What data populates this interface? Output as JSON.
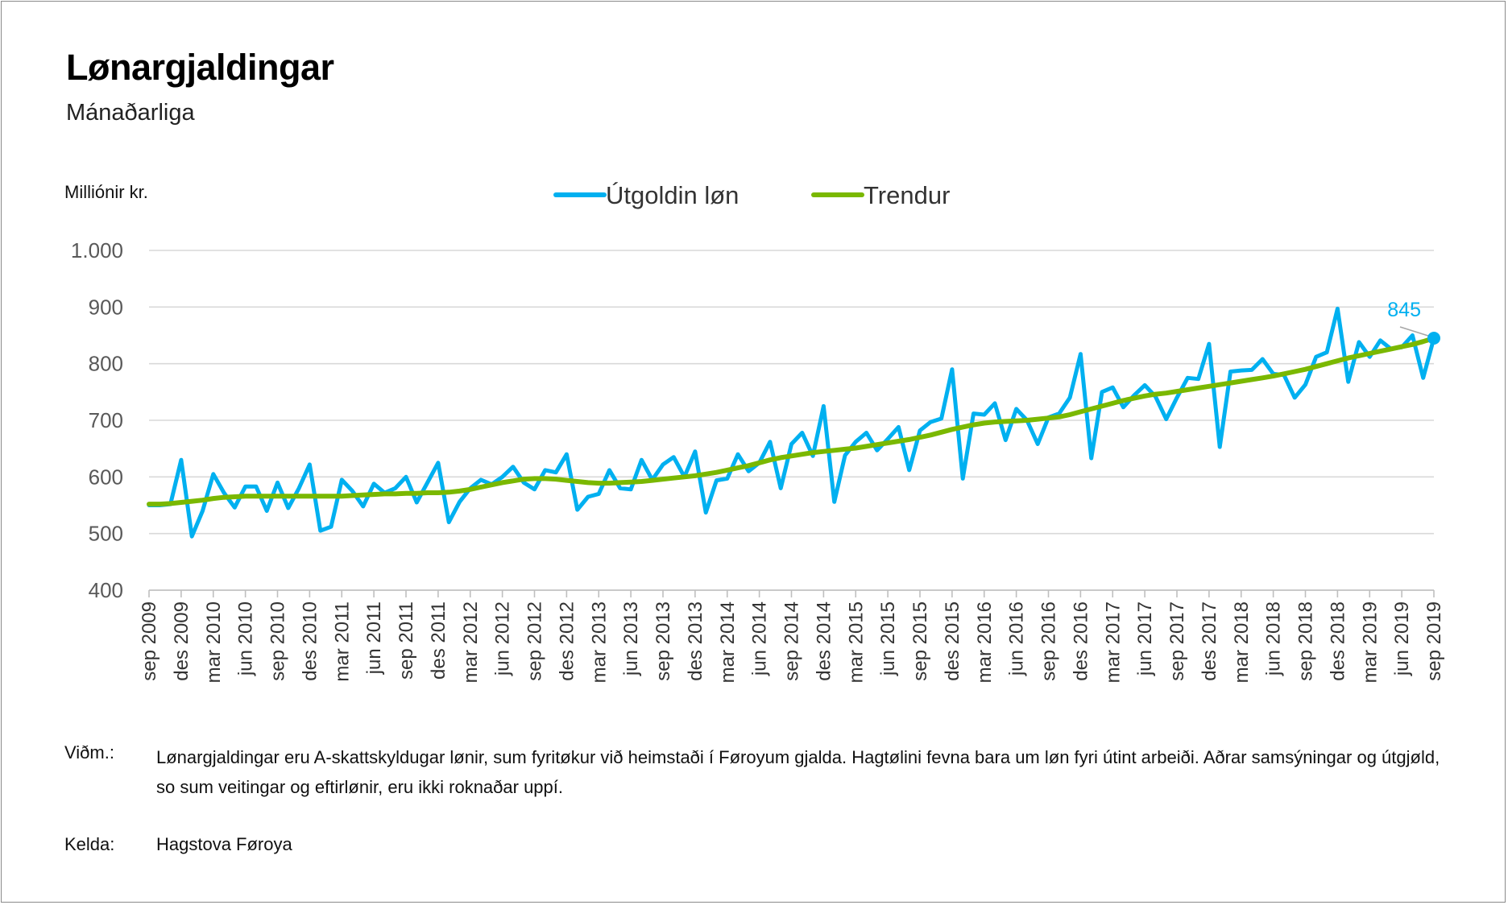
{
  "title": "Lønargjaldingar",
  "subtitle": "Mánaðarliga",
  "notes": {
    "label": "Viðm.:",
    "text": "Lønargjaldingar eru A-skattskyldugar lønir, sum fyritøkur við heimstaði í Føroyum gjalda. Hagtølini fevna bara um løn fyri útint arbeiði. Aðrar samsýningar og útgjøld, so sum veitingar og eftirlønir, eru ikki roknaðar uppí."
  },
  "source": {
    "label": "Kelda:",
    "text": "Hagstova Føroya"
  },
  "chart_data": {
    "type": "line",
    "title": "Lønargjaldingar",
    "subtitle": "Mánaðarliga",
    "ylabel": "Milliónir kr.",
    "xlabel": "",
    "ylim": [
      400,
      1000
    ],
    "yticks": [
      400,
      500,
      600,
      700,
      800,
      900,
      1000
    ],
    "ytick_labels": [
      "400",
      "500",
      "600",
      "700",
      "800",
      "900",
      "1.000"
    ],
    "grid": "horizontal",
    "legend": "top-center",
    "x_tick_labels": [
      "sep 2009",
      "des 2009",
      "mar 2010",
      "jun 2010",
      "sep 2010",
      "des 2010",
      "mar 2011",
      "jun 2011",
      "sep 2011",
      "des 2011",
      "mar 2012",
      "jun 2012",
      "sep 2012",
      "des 2012",
      "mar 2013",
      "jun 2013",
      "sep 2013",
      "des 2013",
      "mar 2014",
      "jun 2014",
      "sep 2014",
      "des 2014",
      "mar 2015",
      "jun 2015",
      "sep 2015",
      "des 2015",
      "mar 2016",
      "jun 2016",
      "sep 2016",
      "des 2016",
      "mar 2017",
      "jun 2017",
      "sep 2017",
      "des 2017",
      "mar 2018",
      "jun 2018",
      "sep 2018",
      "des 2018",
      "mar 2019",
      "jun 2019",
      "sep 2019"
    ],
    "x_start": "sep 2009",
    "x_end": "sep 2019",
    "end_label": "845",
    "series": [
      {
        "name": "Útgoldin løn",
        "color": "#00b0f0",
        "values": [
          550,
          550,
          552,
          630,
          495,
          540,
          605,
          572,
          546,
          583,
          583,
          540,
          590,
          545,
          580,
          622,
          505,
          512,
          595,
          575,
          548,
          588,
          572,
          580,
          600,
          555,
          590,
          625,
          520,
          556,
          580,
          595,
          587,
          600,
          618,
          590,
          578,
          612,
          608,
          640,
          542,
          565,
          570,
          612,
          580,
          578,
          630,
          595,
          622,
          635,
          600,
          645,
          537,
          594,
          597,
          640,
          610,
          625,
          662,
          580,
          658,
          678,
          637,
          725,
          556,
          638,
          662,
          678,
          647,
          667,
          688,
          612,
          682,
          697,
          703,
          790,
          597,
          712,
          710,
          730,
          665,
          720,
          700,
          658,
          705,
          712,
          740,
          817,
          633,
          750,
          758,
          723,
          744,
          762,
          742,
          702,
          740,
          775,
          773,
          835,
          653,
          786,
          788,
          789,
          808,
          782,
          780,
          740,
          763,
          812,
          820,
          897,
          768,
          838,
          812,
          841,
          826,
          829,
          850,
          775,
          845
        ]
      },
      {
        "name": "Trendur",
        "color": "#7ab800",
        "values": [
          552,
          552,
          553,
          555,
          557,
          559,
          562,
          564,
          565,
          566,
          566,
          566,
          566,
          566,
          566,
          566,
          566,
          566,
          566,
          567,
          568,
          569,
          570,
          570,
          571,
          571,
          572,
          572,
          573,
          575,
          578,
          582,
          586,
          590,
          593,
          596,
          597,
          597,
          596,
          594,
          592,
          590,
          589,
          589,
          590,
          591,
          592,
          594,
          596,
          598,
          600,
          602,
          605,
          608,
          612,
          616,
          620,
          625,
          630,
          634,
          637,
          640,
          643,
          645,
          647,
          649,
          651,
          654,
          657,
          660,
          663,
          666,
          670,
          674,
          679,
          684,
          688,
          692,
          695,
          697,
          698,
          699,
          700,
          702,
          704,
          706,
          710,
          715,
          720,
          725,
          730,
          735,
          739,
          743,
          746,
          748,
          751,
          754,
          757,
          760,
          763,
          766,
          769,
          772,
          775,
          778,
          782,
          786,
          790,
          795,
          800,
          805,
          810,
          814,
          818,
          822,
          826,
          830,
          834,
          839,
          845
        ]
      }
    ]
  }
}
